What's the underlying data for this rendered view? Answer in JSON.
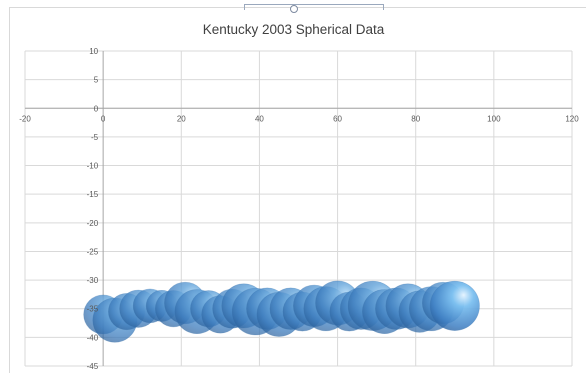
{
  "chart_data": {
    "type": "bubble",
    "title": "Kentucky 2003 Spherical Data",
    "xlabel": "",
    "ylabel": "",
    "xlim": [
      -20,
      120
    ],
    "ylim": [
      -45,
      10
    ],
    "x_ticks": [
      -20,
      0,
      20,
      40,
      60,
      80,
      100,
      120
    ],
    "y_ticks": [
      10,
      5,
      0,
      -5,
      -10,
      -15,
      -20,
      -25,
      -30,
      -35,
      -40,
      -45
    ],
    "grid": true,
    "legend": "none",
    "series_color": "#5b9bd5",
    "points": [
      {
        "x": 0,
        "y": -36,
        "size": 0.75
      },
      {
        "x": 3,
        "y": -37,
        "size": 0.85
      },
      {
        "x": 6,
        "y": -35.5,
        "size": 0.7
      },
      {
        "x": 9,
        "y": -35,
        "size": 0.72
      },
      {
        "x": 12,
        "y": -34.5,
        "size": 0.65
      },
      {
        "x": 15,
        "y": -34.5,
        "size": 0.6
      },
      {
        "x": 18,
        "y": -35,
        "size": 0.7
      },
      {
        "x": 21,
        "y": -34,
        "size": 0.8
      },
      {
        "x": 24,
        "y": -35.5,
        "size": 0.85
      },
      {
        "x": 27,
        "y": -35,
        "size": 0.7
      },
      {
        "x": 30,
        "y": -36,
        "size": 0.72
      },
      {
        "x": 33,
        "y": -35,
        "size": 0.75
      },
      {
        "x": 36,
        "y": -34.5,
        "size": 0.85
      },
      {
        "x": 39,
        "y": -35.5,
        "size": 0.9
      },
      {
        "x": 42,
        "y": -35,
        "size": 0.8
      },
      {
        "x": 45,
        "y": -36,
        "size": 0.85
      },
      {
        "x": 48,
        "y": -35,
        "size": 0.8
      },
      {
        "x": 51,
        "y": -35.5,
        "size": 0.75
      },
      {
        "x": 54,
        "y": -34.5,
        "size": 0.8
      },
      {
        "x": 57,
        "y": -35,
        "size": 0.85
      },
      {
        "x": 60,
        "y": -34,
        "size": 0.85
      },
      {
        "x": 63,
        "y": -35.5,
        "size": 0.75
      },
      {
        "x": 66,
        "y": -35,
        "size": 0.8
      },
      {
        "x": 69,
        "y": -34.5,
        "size": 0.95
      },
      {
        "x": 72,
        "y": -35.5,
        "size": 0.85
      },
      {
        "x": 75,
        "y": -35,
        "size": 0.8
      },
      {
        "x": 78,
        "y": -34.5,
        "size": 0.85
      },
      {
        "x": 81,
        "y": -35.5,
        "size": 0.8
      },
      {
        "x": 84,
        "y": -35,
        "size": 0.85
      },
      {
        "x": 87,
        "y": -34,
        "size": 0.8
      },
      {
        "x": 90,
        "y": -34.5,
        "size": 0.95
      }
    ]
  }
}
